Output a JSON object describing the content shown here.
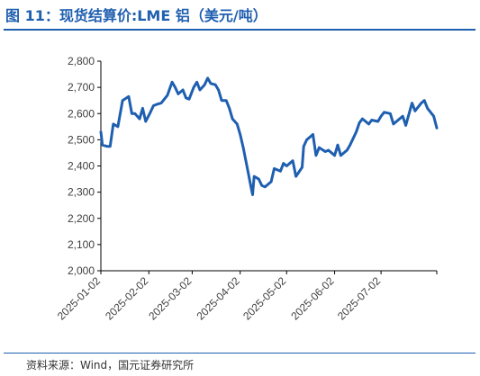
{
  "figure": {
    "title": "图 11：现货结算价:LME 铝（美元/吨）",
    "source": "资料来源：Wind，国元证券研究所"
  },
  "colors": {
    "brand": "#1f5fb0",
    "series": "#1f5fb0",
    "axis": "#000000",
    "text": "#404040"
  },
  "chart_data": {
    "type": "line",
    "title": "图 11：现货结算价:LME 铝（美元/吨）",
    "xlabel": "",
    "ylabel": "",
    "ylim": [
      2000,
      2800
    ],
    "yticks": [
      2000,
      2100,
      2200,
      2300,
      2400,
      2500,
      2600,
      2700,
      2800
    ],
    "ytick_labels": [
      "2,000",
      "2,100",
      "2,200",
      "2,300",
      "2,400",
      "2,500",
      "2,600",
      "2,700",
      "2,800"
    ],
    "xticks": [
      "2025-01-02",
      "2025-02-02",
      "2025-03-02",
      "2025-04-02",
      "2025-05-02",
      "2025-06-02",
      "2025-07-02"
    ],
    "xlim": [
      "2025-01-02",
      "2025-08-07"
    ],
    "grid": false,
    "legend": "none",
    "series": [
      {
        "x": [
          "2025-01-02",
          "2025-01-03",
          "2025-01-06",
          "2025-01-08",
          "2025-01-10",
          "2025-01-13",
          "2025-01-16",
          "2025-01-20",
          "2025-01-22",
          "2025-01-24",
          "2025-01-27",
          "2025-01-29",
          "2025-01-31",
          "2025-02-03",
          "2025-02-05",
          "2025-02-07",
          "2025-02-10",
          "2025-02-12",
          "2025-02-14",
          "2025-02-17",
          "2025-02-19",
          "2025-02-21",
          "2025-02-24",
          "2025-02-26",
          "2025-02-28",
          "2025-03-03",
          "2025-03-05",
          "2025-03-07",
          "2025-03-10",
          "2025-03-12",
          "2025-03-14",
          "2025-03-17",
          "2025-03-19",
          "2025-03-21",
          "2025-03-24",
          "2025-03-26",
          "2025-03-28",
          "2025-03-31",
          "2025-04-02",
          "2025-04-04",
          "2025-04-07",
          "2025-04-08",
          "2025-04-09",
          "2025-04-10",
          "2025-04-11",
          "2025-04-14",
          "2025-04-16",
          "2025-04-18",
          "2025-04-22",
          "2025-04-24",
          "2025-04-28",
          "2025-04-30",
          "2025-05-02",
          "2025-05-06",
          "2025-05-08",
          "2025-05-12",
          "2025-05-13",
          "2025-05-15",
          "2025-05-19",
          "2025-05-21",
          "2025-05-23",
          "2025-05-27",
          "2025-05-29",
          "2025-06-02",
          "2025-06-04",
          "2025-06-06",
          "2025-06-10",
          "2025-06-12",
          "2025-06-16",
          "2025-06-18",
          "2025-06-20",
          "2025-06-24",
          "2025-06-26",
          "2025-06-30",
          "2025-07-02",
          "2025-07-04",
          "2025-07-08",
          "2025-07-10",
          "2025-07-14",
          "2025-07-16",
          "2025-07-18",
          "2025-07-22",
          "2025-07-24",
          "2025-07-28",
          "2025-07-30",
          "2025-08-01",
          "2025-08-05",
          "2025-08-07"
        ],
        "values": [
          2530,
          2480,
          2475,
          2475,
          2560,
          2550,
          2650,
          2665,
          2600,
          2600,
          2580,
          2620,
          2570,
          2605,
          2630,
          2635,
          2640,
          2655,
          2670,
          2720,
          2700,
          2675,
          2690,
          2660,
          2655,
          2700,
          2720,
          2690,
          2710,
          2735,
          2715,
          2710,
          2690,
          2650,
          2650,
          2620,
          2580,
          2560,
          2520,
          2470,
          2380,
          2350,
          2320,
          2290,
          2360,
          2350,
          2325,
          2320,
          2340,
          2390,
          2380,
          2410,
          2400,
          2420,
          2360,
          2395,
          2475,
          2500,
          2520,
          2440,
          2470,
          2455,
          2460,
          2440,
          2480,
          2440,
          2460,
          2480,
          2530,
          2565,
          2580,
          2560,
          2575,
          2570,
          2590,
          2605,
          2600,
          2560,
          2580,
          2590,
          2555,
          2640,
          2610,
          2640,
          2650,
          2620,
          2590,
          2545
        ]
      }
    ]
  }
}
